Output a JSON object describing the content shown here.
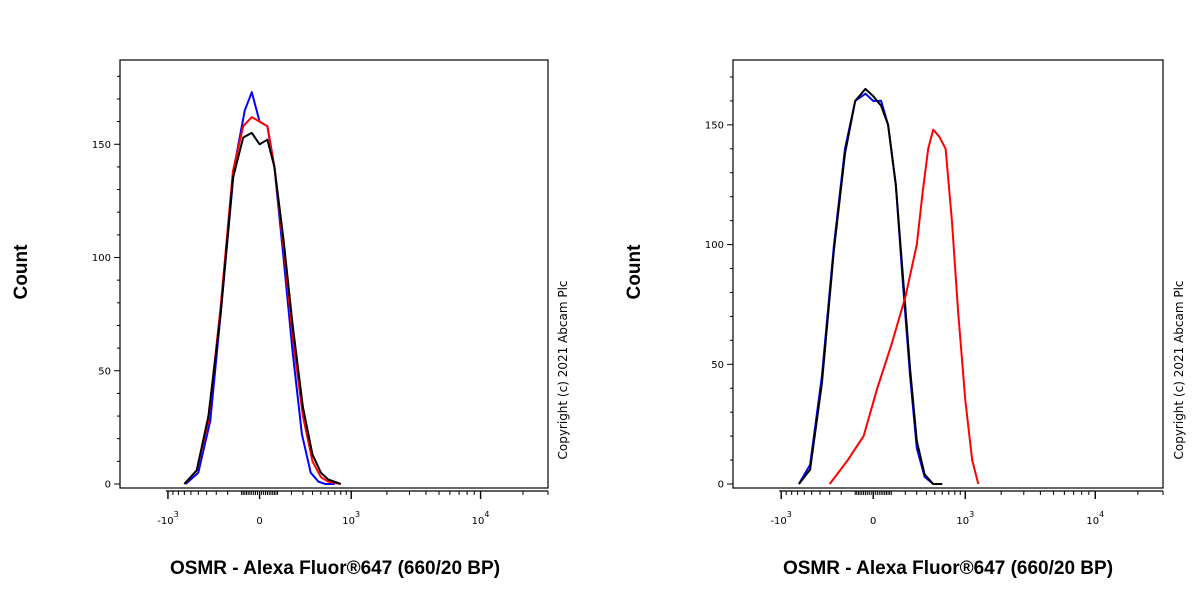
{
  "chart_data": [
    {
      "type": "line",
      "title": "",
      "xlabel": "OSMR - Alexa Fluor®647 (660/20 BP)",
      "ylabel": "Count",
      "xscale": "biexponential",
      "xlim": [
        -2500,
        30000
      ],
      "ylim": [
        0,
        185
      ],
      "yticks": [
        0,
        50,
        100,
        150
      ],
      "xticks": [
        {
          "value": -1000,
          "base": "-10",
          "exp": "3"
        },
        {
          "value": 0,
          "base": "0",
          "exp": ""
        },
        {
          "value": 1000,
          "base": "10",
          "exp": "3"
        },
        {
          "value": 10000,
          "base": "10",
          "exp": "4"
        }
      ],
      "grid": false,
      "copyright": "Copyright (c) 2021 Abcam Plc",
      "series": [
        {
          "color": "#0000ff",
          "x": [
            -680,
            -500,
            -360,
            -250,
            -150,
            -80,
            -40,
            0,
            40,
            80,
            140,
            210,
            290,
            380,
            470,
            560,
            700
          ],
          "y": [
            0,
            5,
            28,
            80,
            140,
            165,
            173,
            160,
            158,
            140,
            100,
            58,
            22,
            5,
            1,
            0,
            0
          ]
        },
        {
          "color": "#ff0000",
          "x": [
            -700,
            -520,
            -380,
            -260,
            -160,
            -90,
            -40,
            0,
            40,
            80,
            140,
            210,
            300,
            400,
            500,
            600,
            800
          ],
          "y": [
            0,
            6,
            28,
            78,
            138,
            158,
            162,
            160,
            158,
            140,
            105,
            65,
            30,
            10,
            3,
            1,
            0
          ]
        },
        {
          "color": "#000000",
          "x": [
            -700,
            -520,
            -380,
            -260,
            -160,
            -90,
            -40,
            0,
            40,
            80,
            140,
            210,
            300,
            400,
            500,
            600,
            800
          ],
          "y": [
            0,
            6,
            30,
            75,
            135,
            153,
            155,
            150,
            152,
            140,
            108,
            70,
            34,
            13,
            5,
            2,
            0
          ]
        }
      ]
    },
    {
      "type": "line",
      "title": "",
      "xlabel": "OSMR - Alexa Fluor®647 (660/20 BP)",
      "ylabel": "Count",
      "xscale": "biexponential",
      "xlim": [
        -2500,
        30000
      ],
      "ylim": [
        0,
        175
      ],
      "yticks": [
        0,
        50,
        100,
        150
      ],
      "xticks": [
        {
          "value": -1000,
          "base": "-10",
          "exp": "3"
        },
        {
          "value": 0,
          "base": "0",
          "exp": ""
        },
        {
          "value": 1000,
          "base": "10",
          "exp": "3"
        },
        {
          "value": 10000,
          "base": "10",
          "exp": "4"
        }
      ],
      "grid": false,
      "copyright": "Copyright (c) 2021 Abcam Plc",
      "series": [
        {
          "color": "#0000ff",
          "x": [
            -680,
            -520,
            -380,
            -260,
            -170,
            -100,
            -40,
            0,
            40,
            80,
            130,
            180,
            240,
            300,
            380,
            480,
            600
          ],
          "y": [
            0,
            8,
            45,
            100,
            140,
            160,
            163,
            160,
            160,
            150,
            125,
            85,
            45,
            15,
            3,
            0,
            0
          ]
        },
        {
          "color": "#000000",
          "x": [
            -680,
            -520,
            -380,
            -260,
            -170,
            -100,
            -40,
            0,
            40,
            80,
            130,
            180,
            240,
            300,
            380,
            480,
            600
          ],
          "y": [
            0,
            6,
            42,
            98,
            138,
            160,
            165,
            162,
            158,
            150,
            125,
            88,
            48,
            18,
            4,
            0,
            0
          ]
        },
        {
          "color": "#ff0000",
          "x": [
            -300,
            -150,
            -50,
            20,
            100,
            200,
            300,
            360,
            420,
            480,
            560,
            650,
            750,
            860,
            1000,
            1150,
            1300
          ],
          "y": [
            0,
            10,
            20,
            40,
            58,
            78,
            100,
            122,
            140,
            148,
            145,
            140,
            110,
            72,
            35,
            10,
            0
          ]
        }
      ]
    }
  ]
}
